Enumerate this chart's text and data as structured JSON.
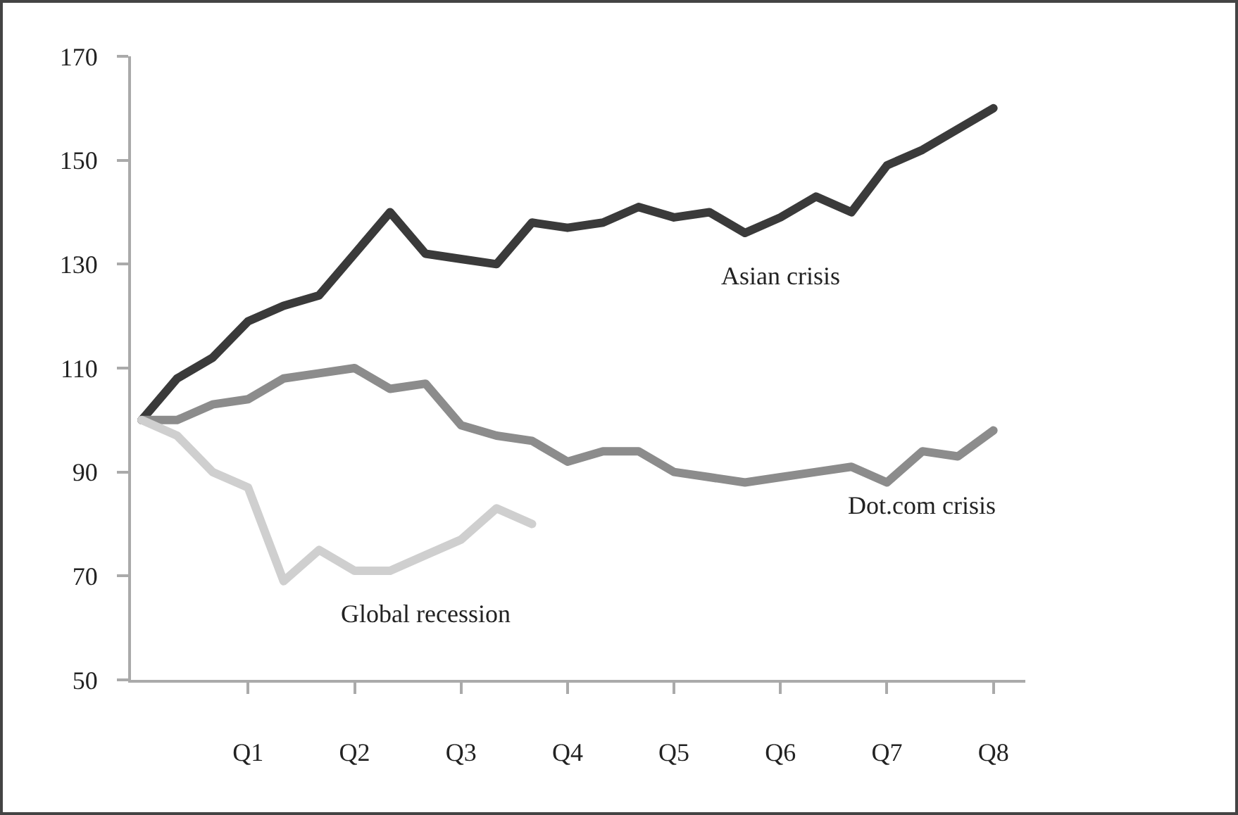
{
  "chart_data": {
    "type": "line",
    "categories": [
      null,
      null,
      null,
      "Q1",
      null,
      null,
      "Q2",
      null,
      null,
      "Q3",
      null,
      null,
      "Q4",
      null,
      null,
      "Q5",
      null,
      null,
      "Q6",
      null,
      null,
      "Q7",
      null,
      null,
      "Q8"
    ],
    "ylim": [
      50,
      170
    ],
    "yticks": [
      50,
      70,
      90,
      110,
      130,
      150,
      170
    ],
    "grid": false,
    "legend": false,
    "marker": "none",
    "line_style": "solid",
    "series": [
      {
        "name": "Asian crisis",
        "color": "#3a3a3a",
        "values": [
          100,
          108,
          112,
          119,
          122,
          124,
          132,
          140,
          132,
          131,
          130,
          138,
          137,
          138,
          141,
          139,
          140,
          136,
          139,
          143,
          140,
          149,
          152,
          156,
          160
        ]
      },
      {
        "name": "Dot.com crisis",
        "color": "#8c8c8c",
        "values": [
          100,
          100,
          103,
          104,
          108,
          109,
          110,
          106,
          107,
          99,
          97,
          96,
          92,
          94,
          94,
          90,
          89,
          88,
          89,
          90,
          91,
          88,
          94,
          93,
          98
        ]
      },
      {
        "name": "Global recession",
        "color": "#cfcfcf",
        "values": [
          100,
          97,
          90,
          87,
          69,
          75,
          71,
          71,
          74,
          77,
          83,
          80,
          null,
          null,
          null,
          null,
          null,
          null,
          null,
          null,
          null,
          null,
          null,
          null,
          null
        ]
      }
    ]
  }
}
